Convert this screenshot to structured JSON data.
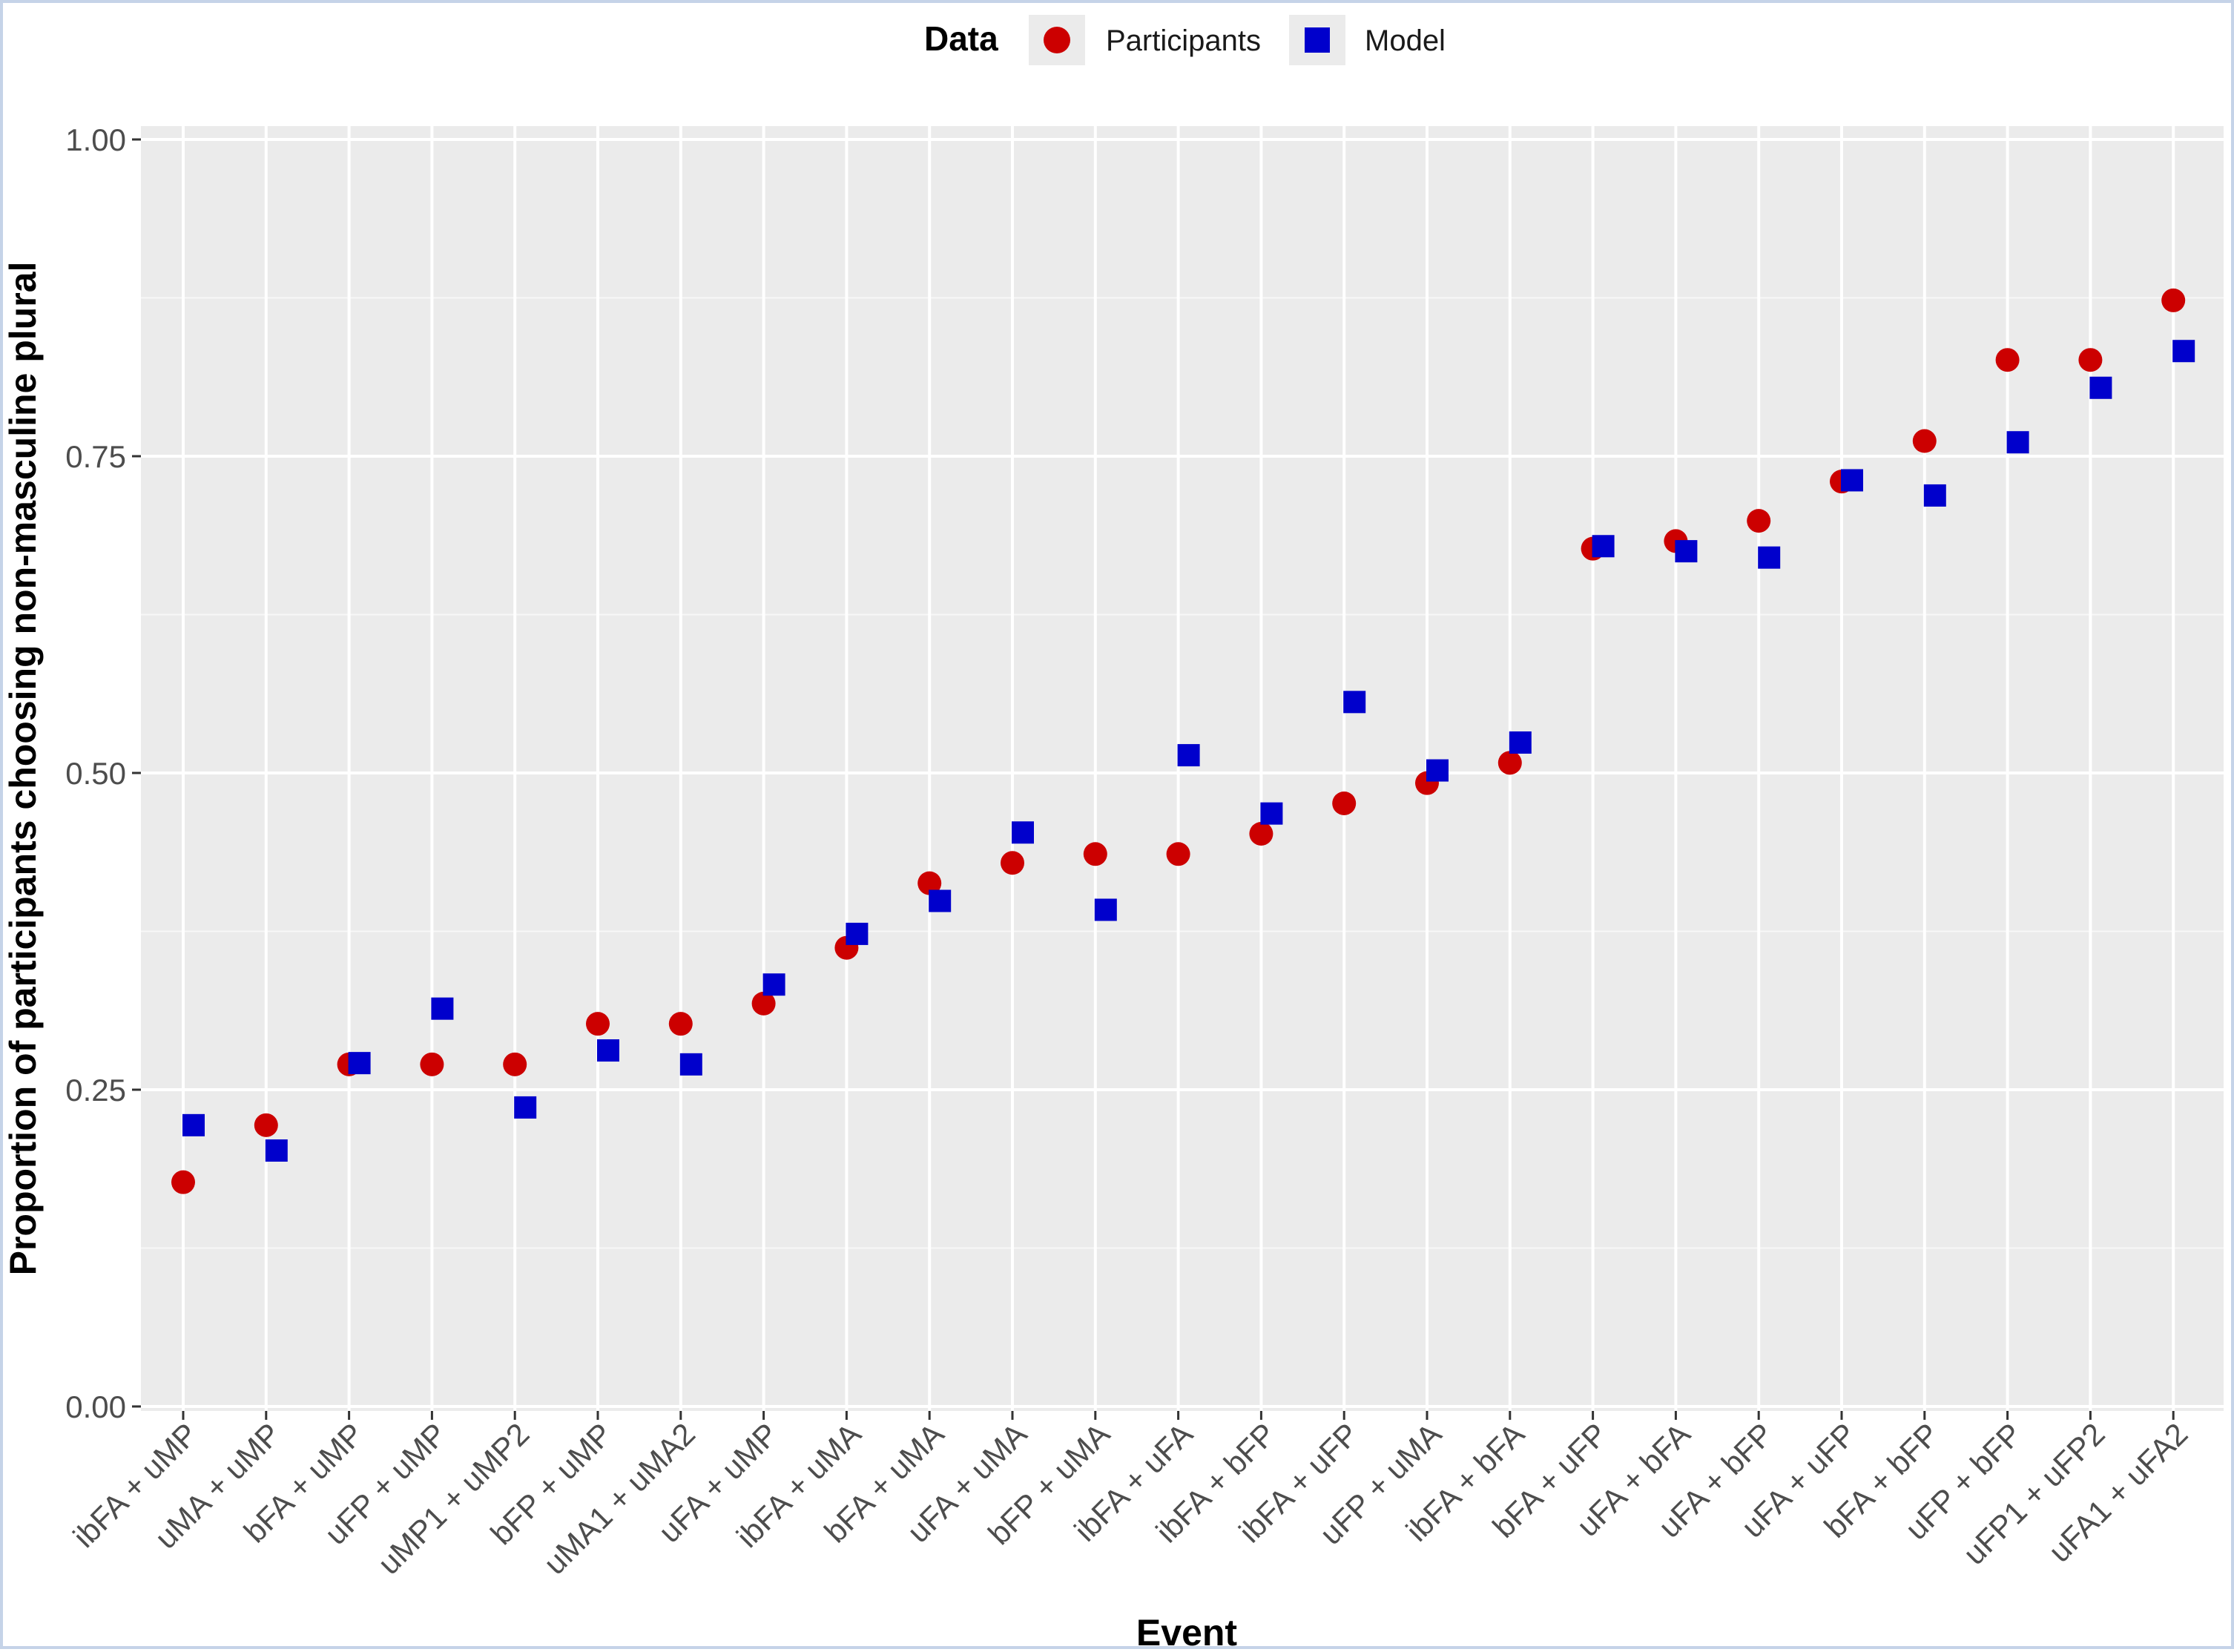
{
  "chart_data": {
    "type": "scatter",
    "title": "",
    "xlabel": "Event",
    "ylabel": "Proportion of participants choosing non-masculine plural",
    "ylim": [
      0,
      1
    ],
    "yticks": [
      "0.00",
      "0.25",
      "0.50",
      "0.75",
      "1.00"
    ],
    "ytick_values": [
      0,
      0.25,
      0.5,
      0.75,
      1.0
    ],
    "grid": true,
    "legend": {
      "title": "Data",
      "position": "top"
    },
    "categories": [
      "ibFA + uMP",
      "uMA + uMP",
      "bFA + uMP",
      "uFP + uMP",
      "uMP1 + uMP2",
      "bFP + uMP",
      "uMA1 + uMA2",
      "uFA + uMP",
      "ibFA + uMA",
      "bFA + uMA",
      "uFA + uMA",
      "bFP + uMA",
      "ibFA + uFA",
      "ibFA + bFP",
      "ibFA + uFP",
      "uFP + uMA",
      "ibFA + bFA",
      "bFA + uFP",
      "uFA + bFA",
      "uFA + bFP",
      "uFA + uFP",
      "bFA + bFP",
      "uFP + bFP",
      "uFP1 + uFP2",
      "uFA1 + uFA2"
    ],
    "series": [
      {
        "name": "Participants",
        "marker": "circle",
        "color": "#cc0000",
        "values": [
          0.177,
          0.222,
          0.27,
          0.27,
          0.27,
          0.302,
          0.302,
          0.318,
          0.362,
          0.413,
          0.429,
          0.436,
          0.436,
          0.452,
          0.476,
          0.492,
          0.508,
          0.677,
          0.683,
          0.699,
          0.73,
          0.762,
          0.826,
          0.826,
          0.873
        ]
      },
      {
        "name": "Model",
        "marker": "square",
        "color": "#0000cc",
        "values": [
          0.222,
          0.202,
          0.271,
          0.314,
          0.236,
          0.281,
          0.27,
          0.333,
          0.373,
          0.399,
          0.453,
          0.392,
          0.514,
          0.468,
          0.556,
          0.502,
          0.524,
          0.679,
          0.675,
          0.67,
          0.731,
          0.719,
          0.761,
          0.804,
          0.833
        ]
      }
    ]
  }
}
